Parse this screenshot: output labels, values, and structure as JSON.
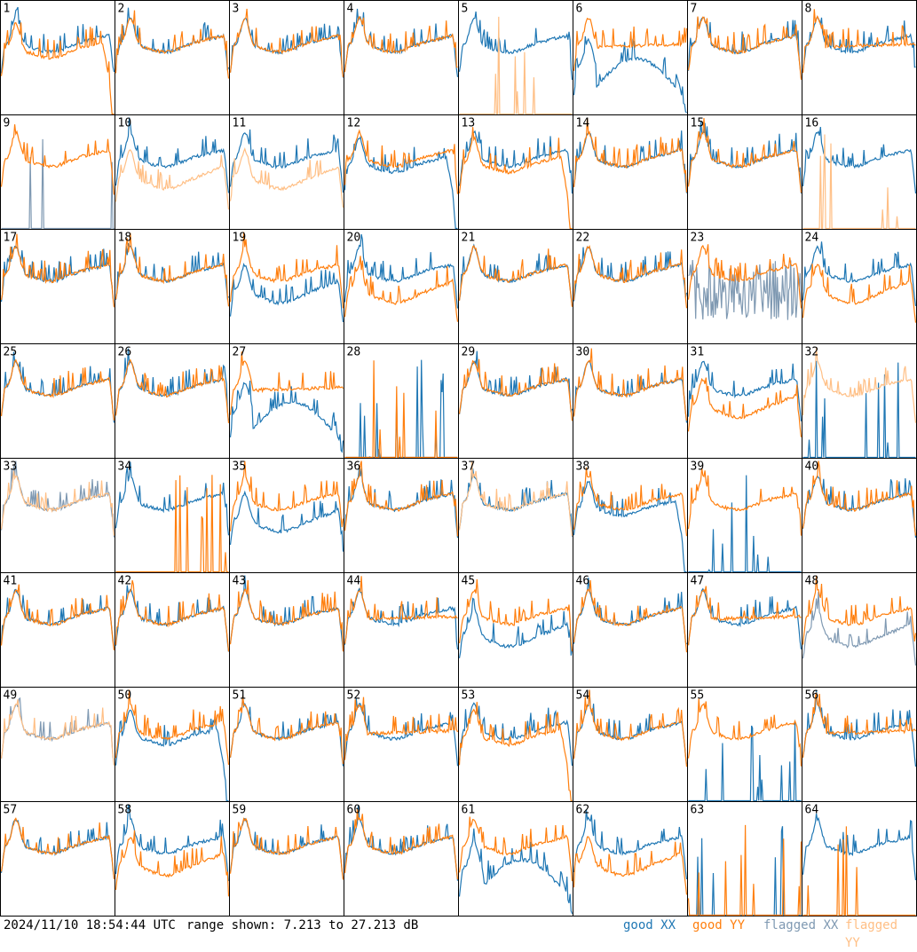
{
  "colors": {
    "good_xx": "#1f77b4",
    "good_yy": "#ff7f0e",
    "flagged_xx": "#7f99b2",
    "flagged_yy": "#ffbf85"
  },
  "footer": {
    "timestamp": "2024/11/10 18:54:44 UTC",
    "range_text": "range shown: 7.213 to 27.213 dB"
  },
  "legend": [
    {
      "key": "good_xx",
      "prefix": "good ",
      "pol": "XX"
    },
    {
      "key": "good_yy",
      "prefix": "good ",
      "pol": "YY"
    },
    {
      "key": "flagged_xx",
      "prefix": "flagged ",
      "pol": "XX"
    },
    {
      "key": "flagged_yy",
      "prefix": "flagged ",
      "pol": "YY"
    }
  ],
  "chart_data": {
    "type": "line",
    "grid": {
      "rows": 8,
      "cols": 8
    },
    "ylim": [
      7.213,
      27.213
    ],
    "y_unit": "dB",
    "tiles": [
      {
        "n": 1,
        "xx": "good",
        "yy": "good",
        "xx_shape": "base",
        "yy_shape": "drop"
      },
      {
        "n": 2,
        "xx": "good",
        "yy": "good",
        "xx_shape": "base",
        "yy_shape": "base"
      },
      {
        "n": 3,
        "xx": "good",
        "yy": "good",
        "xx_shape": "base",
        "yy_shape": "base"
      },
      {
        "n": 4,
        "xx": "good",
        "yy": "good",
        "xx_shape": "base",
        "yy_shape": "base"
      },
      {
        "n": 5,
        "xx": "good",
        "yy": "flagged",
        "xx_shape": "base",
        "yy_shape": "dead"
      },
      {
        "n": 6,
        "xx": "good",
        "yy": "good",
        "xx_shape": "dip",
        "yy_shape": "flat"
      },
      {
        "n": 7,
        "xx": "good",
        "yy": "good",
        "xx_shape": "base",
        "yy_shape": "base"
      },
      {
        "n": 8,
        "xx": "good",
        "yy": "good",
        "xx_shape": "base",
        "yy_shape": "flat"
      },
      {
        "n": 9,
        "xx": "flagged",
        "yy": "good",
        "xx_shape": "dead",
        "yy_shape": "base"
      },
      {
        "n": 10,
        "xx": "good",
        "yy": "flagged",
        "xx_shape": "base",
        "yy_shape": "low"
      },
      {
        "n": 11,
        "xx": "good",
        "yy": "flagged",
        "xx_shape": "base",
        "yy_shape": "low"
      },
      {
        "n": 12,
        "xx": "good",
        "yy": "good",
        "xx_shape": "drop",
        "yy_shape": "base"
      },
      {
        "n": 13,
        "xx": "good",
        "yy": "good",
        "xx_shape": "base",
        "yy_shape": "drop"
      },
      {
        "n": 14,
        "xx": "good",
        "yy": "good",
        "xx_shape": "base",
        "yy_shape": "base"
      },
      {
        "n": 15,
        "xx": "good",
        "yy": "good",
        "xx_shape": "base",
        "yy_shape": "base"
      },
      {
        "n": 16,
        "xx": "good",
        "yy": "flagged",
        "xx_shape": "base",
        "yy_shape": "dead"
      },
      {
        "n": 17,
        "xx": "good",
        "yy": "good",
        "xx_shape": "base",
        "yy_shape": "base"
      },
      {
        "n": 18,
        "xx": "good",
        "yy": "good",
        "xx_shape": "base",
        "yy_shape": "base"
      },
      {
        "n": 19,
        "xx": "good",
        "yy": "good",
        "xx_shape": "low",
        "yy_shape": "base"
      },
      {
        "n": 20,
        "xx": "good",
        "yy": "good",
        "xx_shape": "base",
        "yy_shape": "low"
      },
      {
        "n": 21,
        "xx": "good",
        "yy": "good",
        "xx_shape": "base",
        "yy_shape": "base"
      },
      {
        "n": 22,
        "xx": "good",
        "yy": "good",
        "xx_shape": "base",
        "yy_shape": "base"
      },
      {
        "n": 23,
        "xx": "flagged",
        "yy": "good",
        "xx_shape": "noisy",
        "yy_shape": "base"
      },
      {
        "n": 24,
        "xx": "good",
        "yy": "good",
        "xx_shape": "base",
        "yy_shape": "low"
      },
      {
        "n": 25,
        "xx": "good",
        "yy": "good",
        "xx_shape": "base",
        "yy_shape": "base"
      },
      {
        "n": 26,
        "xx": "good",
        "yy": "good",
        "xx_shape": "base",
        "yy_shape": "base"
      },
      {
        "n": 27,
        "xx": "good",
        "yy": "good",
        "xx_shape": "dip",
        "yy_shape": "flat"
      },
      {
        "n": 28,
        "xx": "good",
        "yy": "good",
        "xx_shape": "dead",
        "yy_shape": "dead"
      },
      {
        "n": 29,
        "xx": "good",
        "yy": "good",
        "xx_shape": "base",
        "yy_shape": "base"
      },
      {
        "n": 30,
        "xx": "good",
        "yy": "good",
        "xx_shape": "base",
        "yy_shape": "base"
      },
      {
        "n": 31,
        "xx": "good",
        "yy": "good",
        "xx_shape": "base",
        "yy_shape": "low"
      },
      {
        "n": 32,
        "xx": "good",
        "yy": "flagged",
        "xx_shape": "dead",
        "yy_shape": "base"
      },
      {
        "n": 33,
        "xx": "flagged",
        "yy": "flagged",
        "xx_shape": "base",
        "yy_shape": "base"
      },
      {
        "n": 34,
        "xx": "good",
        "yy": "good",
        "xx_shape": "base",
        "yy_shape": "dead"
      },
      {
        "n": 35,
        "xx": "good",
        "yy": "good",
        "xx_shape": "low",
        "yy_shape": "base"
      },
      {
        "n": 36,
        "xx": "good",
        "yy": "good",
        "xx_shape": "base",
        "yy_shape": "base"
      },
      {
        "n": 37,
        "xx": "good",
        "yy": "flagged",
        "xx_shape": "base",
        "yy_shape": "base"
      },
      {
        "n": 38,
        "xx": "good",
        "yy": "good",
        "xx_shape": "drop",
        "yy_shape": "base"
      },
      {
        "n": 39,
        "xx": "good",
        "yy": "good",
        "xx_shape": "dead",
        "yy_shape": "base"
      },
      {
        "n": 40,
        "xx": "good",
        "yy": "good",
        "xx_shape": "base",
        "yy_shape": "base"
      },
      {
        "n": 41,
        "xx": "good",
        "yy": "good",
        "xx_shape": "base",
        "yy_shape": "base"
      },
      {
        "n": 42,
        "xx": "good",
        "yy": "good",
        "xx_shape": "base",
        "yy_shape": "base"
      },
      {
        "n": 43,
        "xx": "good",
        "yy": "good",
        "xx_shape": "base",
        "yy_shape": "base"
      },
      {
        "n": 44,
        "xx": "good",
        "yy": "good",
        "xx_shape": "base",
        "yy_shape": "flat"
      },
      {
        "n": 45,
        "xx": "good",
        "yy": "good",
        "xx_shape": "low",
        "yy_shape": "base"
      },
      {
        "n": 46,
        "xx": "good",
        "yy": "good",
        "xx_shape": "base",
        "yy_shape": "base"
      },
      {
        "n": 47,
        "xx": "good",
        "yy": "good",
        "xx_shape": "base",
        "yy_shape": "flat"
      },
      {
        "n": 48,
        "xx": "flagged",
        "yy": "good",
        "xx_shape": "low",
        "yy_shape": "base"
      },
      {
        "n": 49,
        "xx": "flagged",
        "yy": "flagged",
        "xx_shape": "base",
        "yy_shape": "base"
      },
      {
        "n": 50,
        "xx": "good",
        "yy": "good",
        "xx_shape": "drop",
        "yy_shape": "base"
      },
      {
        "n": 51,
        "xx": "good",
        "yy": "good",
        "xx_shape": "base",
        "yy_shape": "base"
      },
      {
        "n": 52,
        "xx": "good",
        "yy": "good",
        "xx_shape": "base",
        "yy_shape": "flat"
      },
      {
        "n": 53,
        "xx": "good",
        "yy": "good",
        "xx_shape": "base",
        "yy_shape": "drop"
      },
      {
        "n": 54,
        "xx": "good",
        "yy": "good",
        "xx_shape": "base",
        "yy_shape": "base"
      },
      {
        "n": 55,
        "xx": "good",
        "yy": "good",
        "xx_shape": "dead",
        "yy_shape": "base"
      },
      {
        "n": 56,
        "xx": "good",
        "yy": "good",
        "xx_shape": "base",
        "yy_shape": "flat"
      },
      {
        "n": 57,
        "xx": "good",
        "yy": "good",
        "xx_shape": "base",
        "yy_shape": "base"
      },
      {
        "n": 58,
        "xx": "good",
        "yy": "good",
        "xx_shape": "base",
        "yy_shape": "low"
      },
      {
        "n": 59,
        "xx": "good",
        "yy": "good",
        "xx_shape": "base",
        "yy_shape": "base"
      },
      {
        "n": 60,
        "xx": "good",
        "yy": "good",
        "xx_shape": "base",
        "yy_shape": "base"
      },
      {
        "n": 61,
        "xx": "good",
        "yy": "good",
        "xx_shape": "dip",
        "yy_shape": "base"
      },
      {
        "n": 62,
        "xx": "good",
        "yy": "good",
        "xx_shape": "base",
        "yy_shape": "low"
      },
      {
        "n": 63,
        "xx": "good",
        "yy": "good",
        "xx_shape": "dead",
        "yy_shape": "dead"
      },
      {
        "n": 64,
        "xx": "good",
        "yy": "good",
        "xx_shape": "base",
        "yy_shape": "dead"
      }
    ]
  }
}
